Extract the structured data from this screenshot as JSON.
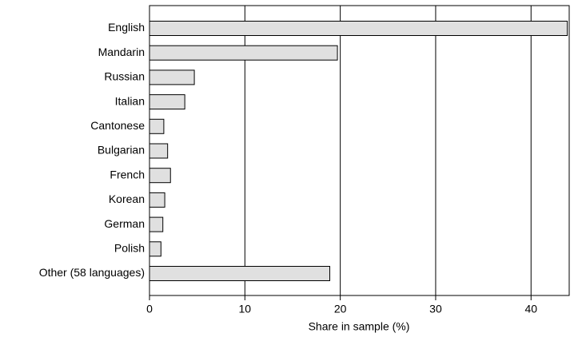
{
  "chart_data": {
    "type": "bar",
    "orientation": "horizontal",
    "categories": [
      "English",
      "Mandarin",
      "Russian",
      "Italian",
      "Cantonese",
      "Bulgarian",
      "French",
      "Korean",
      "German",
      "Polish",
      "Other (58 languages)"
    ],
    "values": [
      43.8,
      19.7,
      4.7,
      3.7,
      1.5,
      1.9,
      2.2,
      1.6,
      1.4,
      1.2,
      18.9
    ],
    "color": "#e0e0e0",
    "x_label": "Share in sample (%)",
    "xlim": [
      0,
      44
    ],
    "xticks": [
      0,
      10,
      20,
      30,
      40
    ],
    "grid": true
  }
}
